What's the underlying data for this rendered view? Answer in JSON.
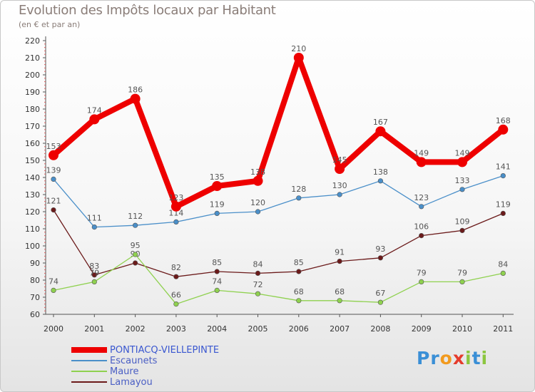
{
  "header": {
    "title": "Evolution des Impôts locaux par Habitant",
    "subtitle": "(en € et par an)"
  },
  "logo": {
    "letters": [
      {
        "ch": "P",
        "color": "#3a8fd6"
      },
      {
        "ch": "r",
        "color": "#3a8fd6"
      },
      {
        "ch": "o",
        "color": "#f29a1e"
      },
      {
        "ch": "x",
        "color": "#e53b2c"
      },
      {
        "ch": "i",
        "color": "#8cc63f"
      },
      {
        "ch": "t",
        "color": "#3a8fd6"
      },
      {
        "ch": "i",
        "color": "#8cc63f"
      }
    ]
  },
  "chart_data": {
    "type": "line",
    "title": "Evolution des Impôts locaux par Habitant",
    "subtitle": "(en € et par an)",
    "xlabel": "",
    "ylabel": "",
    "categories": [
      "2000",
      "2001",
      "2002",
      "2003",
      "2004",
      "2005",
      "2006",
      "2007",
      "2008",
      "2009",
      "2010",
      "2011"
    ],
    "yticks": [
      60,
      70,
      80,
      90,
      100,
      110,
      120,
      130,
      140,
      150,
      160,
      170,
      180,
      190,
      200,
      210,
      220
    ],
    "ylim": [
      60,
      220
    ],
    "grid": false,
    "legend_position": "bottom-left",
    "series": [
      {
        "name": "Lamayou",
        "color": "#6b1a1a",
        "emphasis": false,
        "values": [
          121,
          83,
          90,
          82,
          85,
          84,
          85,
          91,
          93,
          106,
          109,
          119
        ]
      },
      {
        "name": "Maure",
        "color": "#8fd14f",
        "emphasis": false,
        "values": [
          74,
          79,
          95,
          66,
          74,
          72,
          68,
          68,
          67,
          79,
          79,
          84
        ]
      },
      {
        "name": "Escaunets",
        "color": "#4a8fc9",
        "emphasis": false,
        "values": [
          139,
          111,
          112,
          114,
          119,
          120,
          128,
          130,
          138,
          123,
          133,
          141
        ]
      },
      {
        "name": "PONTIACQ-VIELLEPINTE",
        "color": "#ee0000",
        "emphasis": true,
        "values": [
          153,
          174,
          186,
          123,
          135,
          138,
          210,
          145,
          167,
          149,
          149,
          168
        ]
      }
    ],
    "legend_order": [
      "PONTIACQ-VIELLEPINTE",
      "Escaunets",
      "Maure",
      "Lamayou"
    ]
  }
}
